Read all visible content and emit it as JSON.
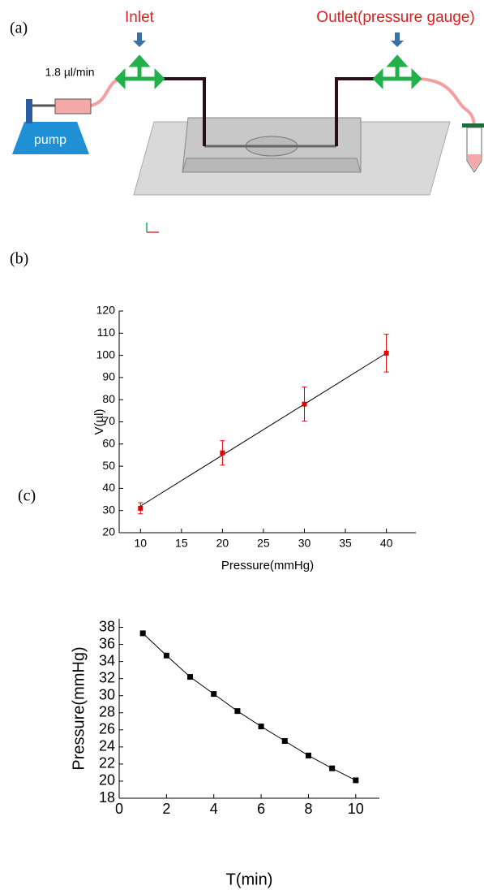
{
  "panel_labels": [
    "(a)",
    "(b)",
    "(c)"
  ],
  "diagram": {
    "inlet": "Inlet",
    "outlet": "Outlet(pressure gauge)",
    "flow_rate": "1.8 µl/min",
    "pump": "pump"
  },
  "chart_data": [
    {
      "type": "scatter",
      "xlabel": "Pressure(mmHg)",
      "ylabel": "V(µl)",
      "series": [
        {
          "color": "#e00000",
          "x": [
            10,
            20,
            30,
            40
          ],
          "values": [
            31,
            56,
            78,
            101
          ],
          "errors": [
            2.5,
            5.5,
            7.7,
            8.5
          ]
        }
      ],
      "fit_line": {
        "color": "#000000",
        "x": [
          10,
          40
        ],
        "values": [
          32,
          101
        ]
      },
      "xlim": [
        7.4,
        43.6
      ],
      "xticks": [
        10,
        15,
        20,
        25,
        30,
        35,
        40
      ],
      "ylim": [
        20,
        120
      ],
      "yticks": [
        20,
        30,
        40,
        50,
        60,
        70,
        80,
        90,
        100,
        110,
        120
      ]
    },
    {
      "type": "line",
      "xlabel": "T(min)",
      "ylabel": "Pressure(mmHg)",
      "series": [
        {
          "color": "#000000",
          "x": [
            1,
            2,
            3,
            4,
            5,
            6,
            7,
            8,
            9,
            10
          ],
          "values": [
            37.3,
            34.7,
            32.2,
            30.2,
            28.2,
            26.4,
            24.7,
            23.0,
            21.5,
            20.1
          ]
        }
      ],
      "xlim": [
        0,
        11
      ],
      "xticks": [
        0,
        2,
        4,
        6,
        8,
        10
      ],
      "ylim": [
        18,
        39
      ],
      "yticks": [
        18,
        20,
        22,
        24,
        26,
        28,
        30,
        32,
        34,
        36,
        38
      ]
    }
  ]
}
